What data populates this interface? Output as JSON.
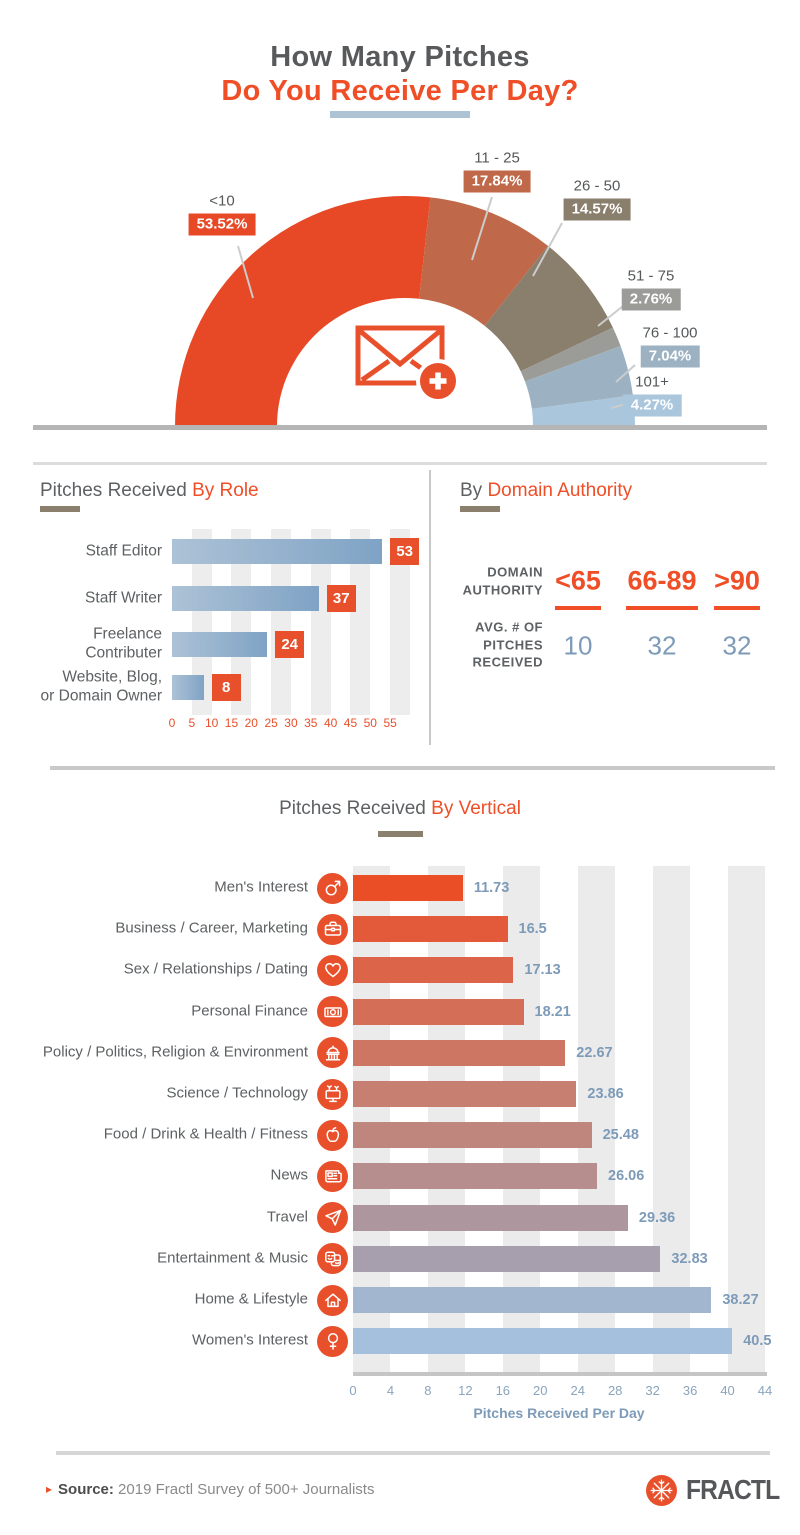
{
  "header": {
    "title_line1": "How Many Pitches",
    "title_line2": "Do You Receive Per Day?"
  },
  "colors": {
    "accent_orange": "#e8502b",
    "dark_gray_text": "#58595b",
    "taupe": "#8b7f6d",
    "blue_value": "#7d9bb8",
    "light_blue_underline": "#aec3d4"
  },
  "sections": {
    "role": {
      "title_gray": "Pitches Received ",
      "title_accent": "By Role"
    },
    "domain": {
      "title_gray": "By ",
      "title_accent": "Domain Authority"
    },
    "vertical": {
      "title_gray": "Pitches Received ",
      "title_accent": "By Vertical",
      "axis_label": "Pitches Received Per Day"
    }
  },
  "chart_data": [
    {
      "type": "pie",
      "variant": "semi-donut",
      "title": "How Many Pitches Do You Receive Per Day?",
      "center_icon": "envelope-plus-icon",
      "segments": [
        {
          "label": "<10",
          "value": 53.52,
          "display": "53.52%",
          "color": "#e74926"
        },
        {
          "label": "11 - 25",
          "value": 17.84,
          "display": "17.84%",
          "color": "#c0694a"
        },
        {
          "label": "26 - 50",
          "value": 14.57,
          "display": "14.57%",
          "color": "#8a7e6c"
        },
        {
          "label": "51 - 75",
          "value": 2.76,
          "display": "2.76%",
          "color": "#9b9c97"
        },
        {
          "label": "76 - 100",
          "value": 7.04,
          "display": "7.04%",
          "color": "#9cb2c2"
        },
        {
          "label": "101+",
          "value": 4.27,
          "display": "4.27%",
          "color": "#aac6dc"
        }
      ]
    },
    {
      "type": "bar",
      "orientation": "horizontal",
      "title": "Pitches Received By Role",
      "categories": [
        [
          "Staff Editor"
        ],
        [
          "Staff Writer"
        ],
        [
          "Freelance",
          "Contributer"
        ],
        [
          "Website, Blog,",
          "or Domain Owner"
        ]
      ],
      "values": [
        53,
        37,
        24,
        8
      ],
      "xlim": [
        0,
        55
      ],
      "xticks": [
        0,
        5,
        10,
        15,
        20,
        25,
        30,
        35,
        40,
        45,
        50,
        55
      ],
      "bar_gradient": [
        "#adc2d6",
        "#7fa3c5"
      ],
      "badge_color": "#e8502b"
    },
    {
      "type": "table",
      "title": "By Domain Authority",
      "row_headers": [
        [
          "DOMAIN",
          "AUTHORITY"
        ],
        [
          "AVG. # OF",
          "PITCHES",
          "RECEIVED"
        ]
      ],
      "columns": [
        {
          "range": "<65",
          "avg": "10"
        },
        {
          "range": "66-89",
          "avg": "32"
        },
        {
          "range": ">90",
          "avg": "32"
        }
      ]
    },
    {
      "type": "bar",
      "orientation": "horizontal",
      "title": "Pitches Received By Vertical",
      "xlabel": "Pitches Received Per Day",
      "xlim": [
        0,
        44
      ],
      "xticks": [
        0,
        4,
        8,
        12,
        16,
        20,
        24,
        28,
        32,
        36,
        40,
        44
      ],
      "categories": [
        "Men's Interest",
        "Business / Career, Marketing",
        "Sex / Relationships / Dating",
        "Personal Finance",
        "Policy / Politics, Religion & Environment",
        "Science / Technology",
        "Food / Drink & Health / Fitness",
        "News",
        "Travel",
        "Entertainment & Music",
        "Home & Lifestyle",
        "Women's Interest"
      ],
      "values": [
        11.73,
        16.5,
        17.13,
        18.21,
        22.67,
        23.86,
        25.48,
        26.06,
        29.36,
        32.83,
        38.27,
        40.5
      ],
      "displays": [
        "11.73",
        "16.5",
        "17.13",
        "18.21",
        "22.67",
        "23.86",
        "25.48",
        "26.06",
        "29.36",
        "32.83",
        "38.27",
        "40.5"
      ],
      "icons": [
        "male-icon",
        "briefcase-icon",
        "heart-icon",
        "banknote-icon",
        "capitol-icon",
        "monitor-icon",
        "apple-icon",
        "newspaper-icon",
        "plane-icon",
        "theater-masks-icon",
        "home-icon",
        "female-icon"
      ],
      "colors": [
        "#e94e27",
        "#e25a39",
        "#dc6448",
        "#d56e56",
        "#cd7663",
        "#c67f70",
        "#bf867e",
        "#b78e8e",
        "#ae969f",
        "#a79fae",
        "#a3b6cf",
        "#a4c0dc"
      ]
    }
  ],
  "footer": {
    "source_label": "Source:",
    "source_text": " 2019 Fractl Survey of 500+ Journalists",
    "brand": "FRACTL"
  }
}
